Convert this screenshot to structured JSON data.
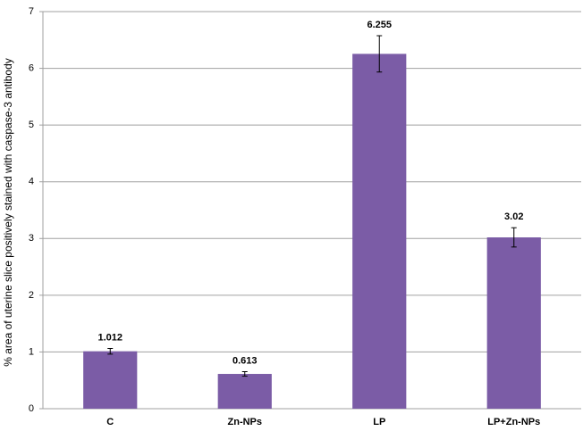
{
  "chart_data": {
    "type": "bar",
    "y_label": "% area of uterine slice positively stained with caspase-3 antibody",
    "categories": [
      "C",
      "Zn-NPs",
      "LP",
      "LP+Zn-NPs"
    ],
    "values": [
      1.012,
      0.613,
      6.255,
      3.02
    ],
    "errors": [
      0.05,
      0.04,
      0.32,
      0.17
    ],
    "color": "#7b5ca6",
    "ylim": [
      0,
      7
    ],
    "yticks": [
      0,
      1,
      2,
      3,
      4,
      5,
      6,
      7
    ],
    "grid": true
  }
}
